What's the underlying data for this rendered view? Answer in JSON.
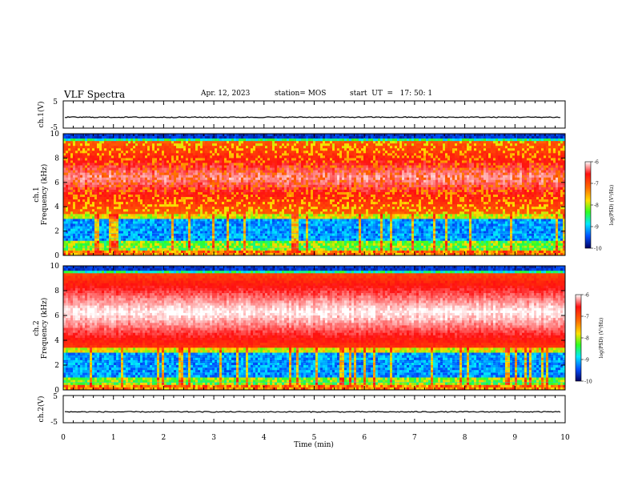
{
  "header": {
    "title": "VLF Spectra",
    "date": "Apr. 12, 2023",
    "station": "station= MOS",
    "start": "start  UT  =   17: 50: 1"
  },
  "colorbar_label": "log(PSD) (V²/Hz)",
  "colors": {
    "colormap": [
      "#ffffff",
      "#ff1010",
      "#ff6a00",
      "#ffe000",
      "#30ff20",
      "#00e8ff",
      "#0050ff",
      "#000060"
    ]
  },
  "chart_data": [
    {
      "type": "line",
      "panel": "voltage-ch1",
      "ylabel": "ch.1(V)",
      "ylim": [
        -5,
        5
      ],
      "yticks": [
        "5",
        "-5"
      ],
      "series": [
        {
          "level": -1.0
        }
      ]
    },
    {
      "type": "heatmap",
      "panel": "spectrogram-ch1",
      "ylabel": "ch.1",
      "ylabel2": "Frequency (kHz)",
      "ylim": [
        0,
        10
      ],
      "yticks": [
        "0",
        "2",
        "4",
        "6",
        "8",
        "10"
      ],
      "xlim": [
        0,
        10
      ],
      "intense_band_khz": [
        3.5,
        9.3
      ],
      "quiet_band_khz": [
        1.2,
        3.0
      ],
      "colorbar": {
        "range": [
          -10,
          -6
        ],
        "ticks": [
          "-6",
          "-7",
          "-8",
          "-9",
          "-10"
        ]
      }
    },
    {
      "type": "heatmap",
      "panel": "spectrogram-ch2",
      "ylabel": "ch.2",
      "ylabel2": "Frequency (kHz)",
      "ylim": [
        0,
        10
      ],
      "yticks": [
        "0",
        "2",
        "4",
        "6",
        "8",
        "10"
      ],
      "xlim": [
        0,
        10
      ],
      "intense_band_khz": [
        3.5,
        9.0
      ],
      "quiet_band_khz": [
        1.0,
        3.0
      ],
      "colorbar": {
        "range": [
          -10,
          -6
        ],
        "ticks": [
          "-6",
          "-7",
          "-8",
          "-9",
          "-10"
        ]
      }
    },
    {
      "type": "line",
      "panel": "voltage-ch2",
      "ylabel": "ch.2(V)",
      "ylim": [
        -5,
        5
      ],
      "yticks": [
        "5",
        "-5"
      ],
      "xlabel": "Time (min)",
      "xlim": [
        0,
        10
      ],
      "xticks": [
        "0",
        "1",
        "2",
        "3",
        "4",
        "5",
        "6",
        "7",
        "8",
        "9",
        "10"
      ],
      "series": [
        {
          "level": -1.0
        }
      ]
    }
  ]
}
